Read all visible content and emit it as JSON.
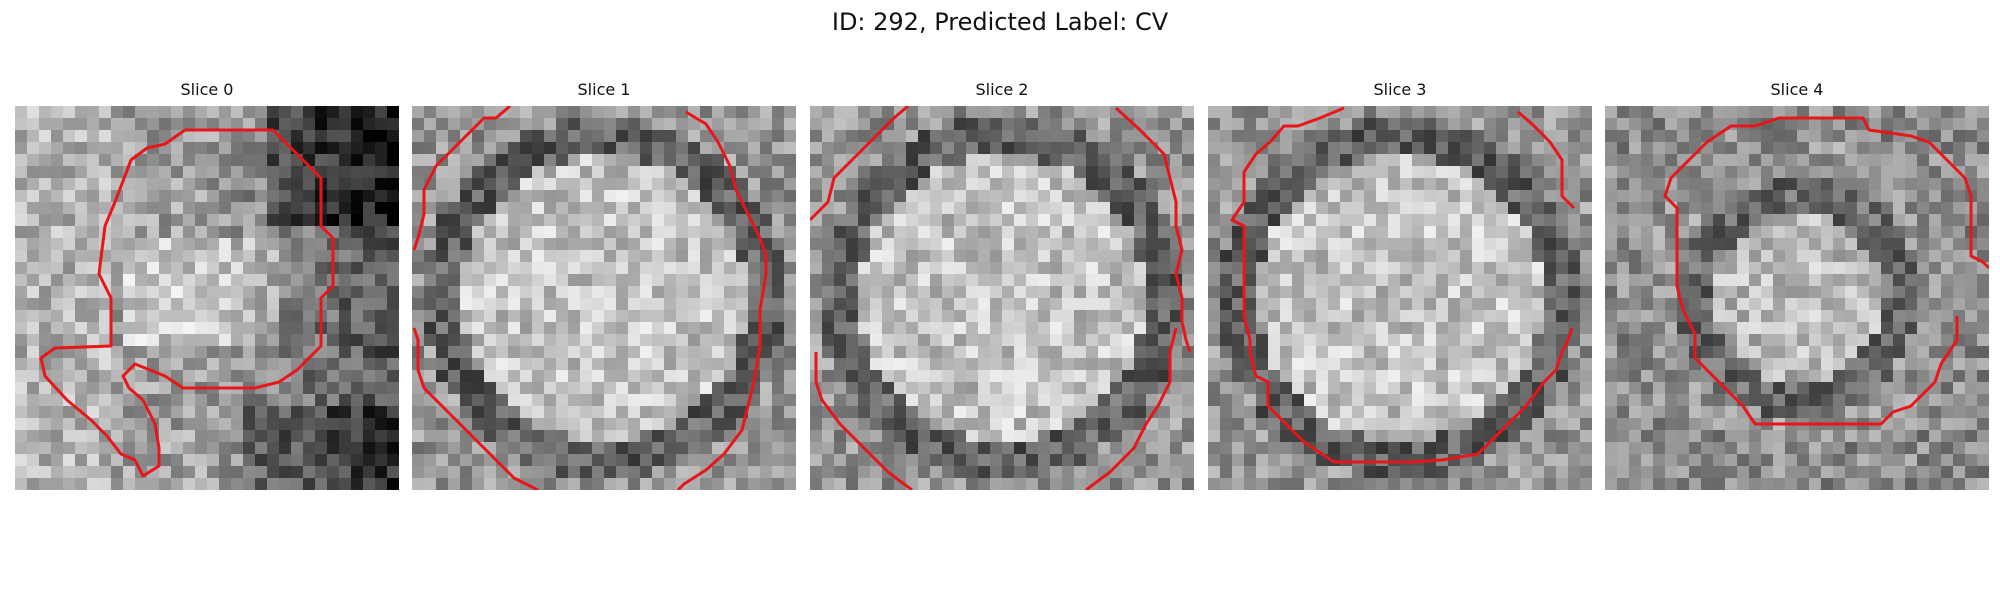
{
  "figure": {
    "title": "ID: 292, Predicted Label: CV"
  },
  "panels": [
    {
      "title": "Slice 0",
      "contour_color": "#e8161b"
    },
    {
      "title": "Slice 1",
      "contour_color": "#e8161b"
    },
    {
      "title": "Slice 2",
      "contour_color": "#e8161b"
    },
    {
      "title": "Slice 3",
      "contour_color": "#e8161b"
    },
    {
      "title": "Slice 4",
      "contour_color": "#e8161b"
    }
  ]
}
